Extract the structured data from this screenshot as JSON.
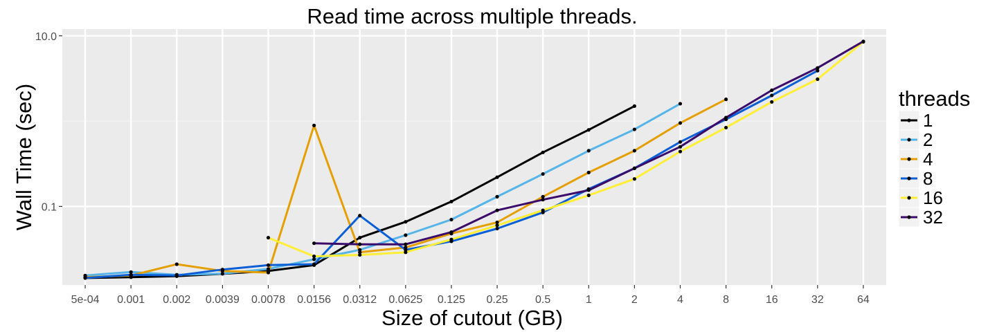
{
  "chart_data": {
    "type": "line",
    "title": "Read time across multiple threads.",
    "xlabel": "Size of cutout (GB)",
    "ylabel": "Wall Time (sec)",
    "x_scale": "categorical",
    "y_scale": "log10",
    "ylim": [
      0.012,
      12
    ],
    "categories": [
      "5e-04",
      "0.001",
      "0.002",
      "0.0039",
      "0.0078",
      "0.0156",
      "0.0312",
      "0.0625",
      "0.125",
      "0.25",
      "0.5",
      "1",
      "2",
      "4",
      "8",
      "16",
      "32",
      "64"
    ],
    "yticks": [
      {
        "value": 0.1,
        "label": "0.1"
      },
      {
        "value": 10,
        "label": "10.0"
      }
    ],
    "grid": true,
    "legend": {
      "title": "threads",
      "position": "right"
    },
    "series": [
      {
        "name": "1",
        "color": "#000000",
        "values": [
          0.0145,
          0.0148,
          0.0152,
          0.0162,
          0.0175,
          0.0205,
          0.043,
          0.066,
          0.114,
          0.22,
          0.43,
          0.79,
          1.5,
          null,
          null,
          null,
          null,
          null
        ]
      },
      {
        "name": "2",
        "color": "#56b4e9",
        "values": [
          0.0155,
          0.017,
          0.0158,
          0.0163,
          0.0185,
          0.024,
          0.031,
          0.046,
          0.07,
          0.13,
          0.24,
          0.45,
          0.8,
          1.6,
          null,
          null,
          null,
          null
        ]
      },
      {
        "name": "4",
        "color": "#e69f00",
        "values": [
          0.0148,
          0.0155,
          0.021,
          0.0175,
          0.0168,
          0.89,
          0.029,
          0.033,
          0.048,
          0.065,
          0.13,
          0.25,
          0.45,
          0.95,
          1.8,
          null,
          null,
          null
        ]
      },
      {
        "name": "8",
        "color": "#0a5fd6",
        "values": [
          0.0145,
          0.0158,
          0.0155,
          0.0182,
          0.0205,
          0.021,
          0.078,
          0.031,
          0.039,
          0.055,
          0.085,
          0.16,
          0.28,
          0.57,
          1.05,
          2.0,
          3.9,
          null
        ]
      },
      {
        "name": "16",
        "color": "#ffee33",
        "values": [
          null,
          null,
          null,
          null,
          0.043,
          0.026,
          0.027,
          0.029,
          0.041,
          0.06,
          0.09,
          0.135,
          0.21,
          0.44,
          0.84,
          1.68,
          3.1,
          8.5
        ]
      },
      {
        "name": "32",
        "color": "#3a0b6a",
        "values": [
          null,
          null,
          null,
          null,
          null,
          0.037,
          0.036,
          0.036,
          0.05,
          0.09,
          0.12,
          0.155,
          0.28,
          0.5,
          1.1,
          2.3,
          4.2,
          8.6
        ]
      }
    ]
  }
}
